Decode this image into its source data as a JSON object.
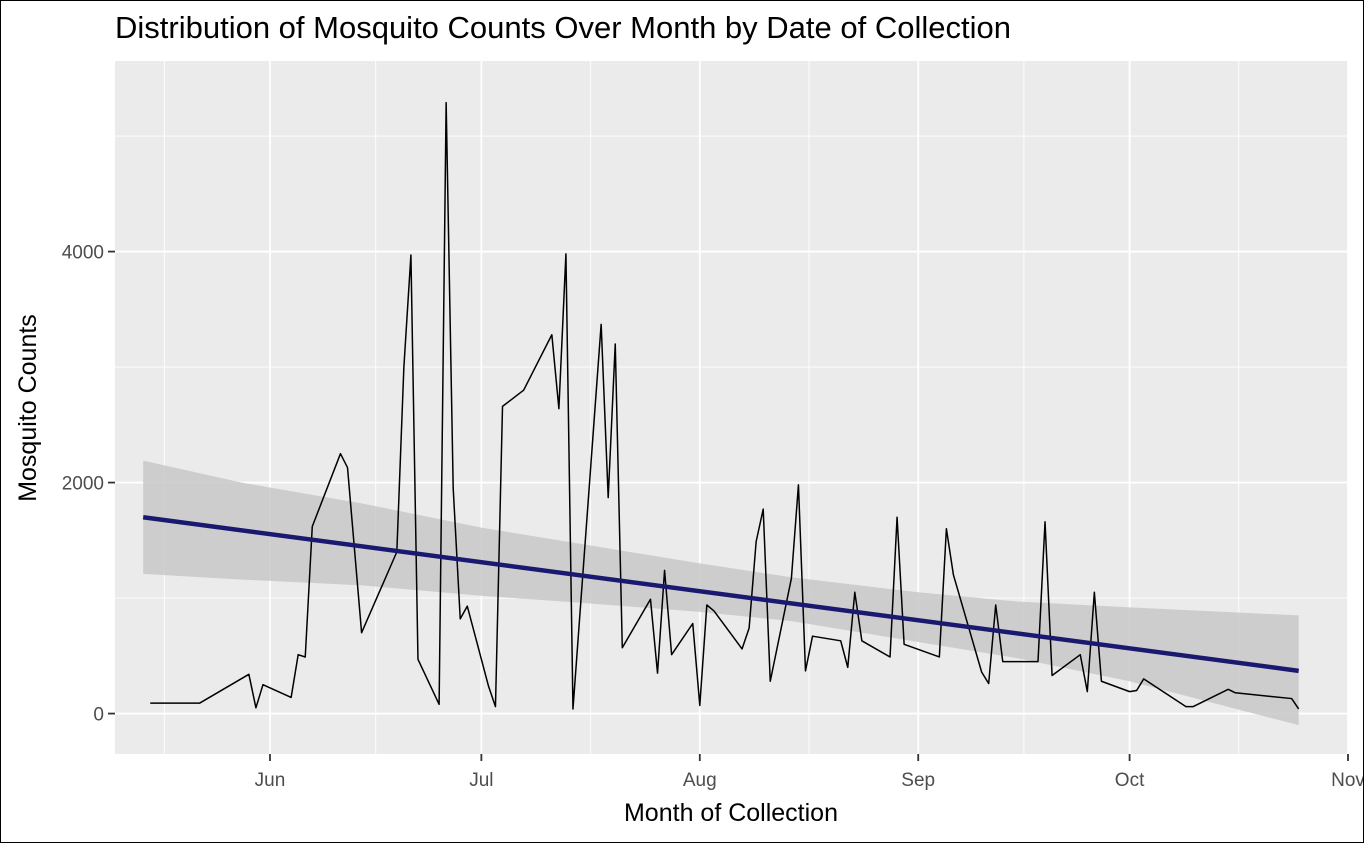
{
  "chart_data": {
    "type": "line",
    "title": "Distribution of Mosquito Counts Over Month by Date of Collection",
    "xlabel": "Month of Collection",
    "ylabel": "Mosquito Counts",
    "x_axis": {
      "type": "date",
      "range": [
        "2023-05-10",
        "2023-11-01"
      ],
      "major_ticks": [
        "2023-06-01",
        "2023-07-01",
        "2023-08-01",
        "2023-09-01",
        "2023-10-01",
        "2023-11-01"
      ],
      "major_tick_labels": [
        "Jun",
        "Jul",
        "Aug",
        "Sep",
        "Oct",
        "Nov"
      ]
    },
    "y_axis": {
      "range": [
        -350,
        5650
      ],
      "ticks": [
        0,
        2000,
        4000
      ],
      "tick_labels": [
        "0",
        "2000",
        "4000"
      ]
    },
    "grid": true,
    "series": [
      {
        "style": "line",
        "color": "#000000",
        "points": [
          [
            "2023-05-15",
            90
          ],
          [
            "2023-05-22",
            90
          ],
          [
            "2023-05-29",
            340
          ],
          [
            "2023-05-30",
            50
          ],
          [
            "2023-05-31",
            250
          ],
          [
            "2023-06-04",
            140
          ],
          [
            "2023-06-05",
            510
          ],
          [
            "2023-06-06",
            490
          ],
          [
            "2023-06-07",
            1620
          ],
          [
            "2023-06-11",
            2250
          ],
          [
            "2023-06-12",
            2130
          ],
          [
            "2023-06-14",
            700
          ],
          [
            "2023-06-19",
            1400
          ],
          [
            "2023-06-20",
            3000
          ],
          [
            "2023-06-21",
            3970
          ],
          [
            "2023-06-22",
            470
          ],
          [
            "2023-06-25",
            80
          ],
          [
            "2023-06-26",
            5290
          ],
          [
            "2023-06-27",
            1950
          ],
          [
            "2023-06-28",
            820
          ],
          [
            "2023-06-29",
            930
          ],
          [
            "2023-07-02",
            240
          ],
          [
            "2023-07-03",
            60
          ],
          [
            "2023-07-04",
            2660
          ],
          [
            "2023-07-07",
            2800
          ],
          [
            "2023-07-09",
            3040
          ],
          [
            "2023-07-11",
            3280
          ],
          [
            "2023-07-12",
            2640
          ],
          [
            "2023-07-13",
            3980
          ],
          [
            "2023-07-14",
            40
          ],
          [
            "2023-07-18",
            3370
          ],
          [
            "2023-07-19",
            1870
          ],
          [
            "2023-07-20",
            3200
          ],
          [
            "2023-07-21",
            570
          ],
          [
            "2023-07-25",
            990
          ],
          [
            "2023-07-26",
            350
          ],
          [
            "2023-07-27",
            1240
          ],
          [
            "2023-07-28",
            510
          ],
          [
            "2023-07-31",
            780
          ],
          [
            "2023-08-01",
            70
          ],
          [
            "2023-08-02",
            940
          ],
          [
            "2023-08-03",
            890
          ],
          [
            "2023-08-07",
            560
          ],
          [
            "2023-08-08",
            740
          ],
          [
            "2023-08-09",
            1490
          ],
          [
            "2023-08-10",
            1770
          ],
          [
            "2023-08-11",
            280
          ],
          [
            "2023-08-14",
            1170
          ],
          [
            "2023-08-15",
            1980
          ],
          [
            "2023-08-16",
            370
          ],
          [
            "2023-08-17",
            670
          ],
          [
            "2023-08-21",
            630
          ],
          [
            "2023-08-22",
            400
          ],
          [
            "2023-08-23",
            1050
          ],
          [
            "2023-08-24",
            630
          ],
          [
            "2023-08-28",
            490
          ],
          [
            "2023-08-29",
            1700
          ],
          [
            "2023-08-30",
            600
          ],
          [
            "2023-09-04",
            490
          ],
          [
            "2023-09-05",
            1600
          ],
          [
            "2023-09-06",
            1200
          ],
          [
            "2023-09-10",
            360
          ],
          [
            "2023-09-11",
            260
          ],
          [
            "2023-09-12",
            940
          ],
          [
            "2023-09-13",
            450
          ],
          [
            "2023-09-18",
            450
          ],
          [
            "2023-09-19",
            1660
          ],
          [
            "2023-09-20",
            330
          ],
          [
            "2023-09-24",
            510
          ],
          [
            "2023-09-25",
            190
          ],
          [
            "2023-09-26",
            1050
          ],
          [
            "2023-09-27",
            280
          ],
          [
            "2023-10-01",
            190
          ],
          [
            "2023-10-02",
            200
          ],
          [
            "2023-10-03",
            300
          ],
          [
            "2023-10-09",
            60
          ],
          [
            "2023-10-10",
            60
          ],
          [
            "2023-10-15",
            210
          ],
          [
            "2023-10-16",
            180
          ],
          [
            "2023-10-24",
            130
          ],
          [
            "2023-10-25",
            40
          ]
        ]
      },
      {
        "style": "trend",
        "color": "#191970",
        "points": [
          [
            "2023-05-14",
            1700
          ],
          [
            "2023-10-25",
            370
          ]
        ]
      },
      {
        "style": "confidence-band",
        "color": "#c8c8c8",
        "x": [
          "2023-05-14",
          "2023-05-28",
          "2023-06-14",
          "2023-07-01",
          "2023-07-15",
          "2023-08-01",
          "2023-08-14",
          "2023-09-01",
          "2023-09-15",
          "2023-10-01",
          "2023-10-25"
        ],
        "upper": [
          2190,
          2000,
          1820,
          1610,
          1470,
          1300,
          1180,
          1050,
          970,
          920,
          850
        ],
        "lower": [
          1210,
          1160,
          1110,
          1020,
          960,
          880,
          800,
          620,
          480,
          280,
          -100
        ]
      }
    ]
  }
}
